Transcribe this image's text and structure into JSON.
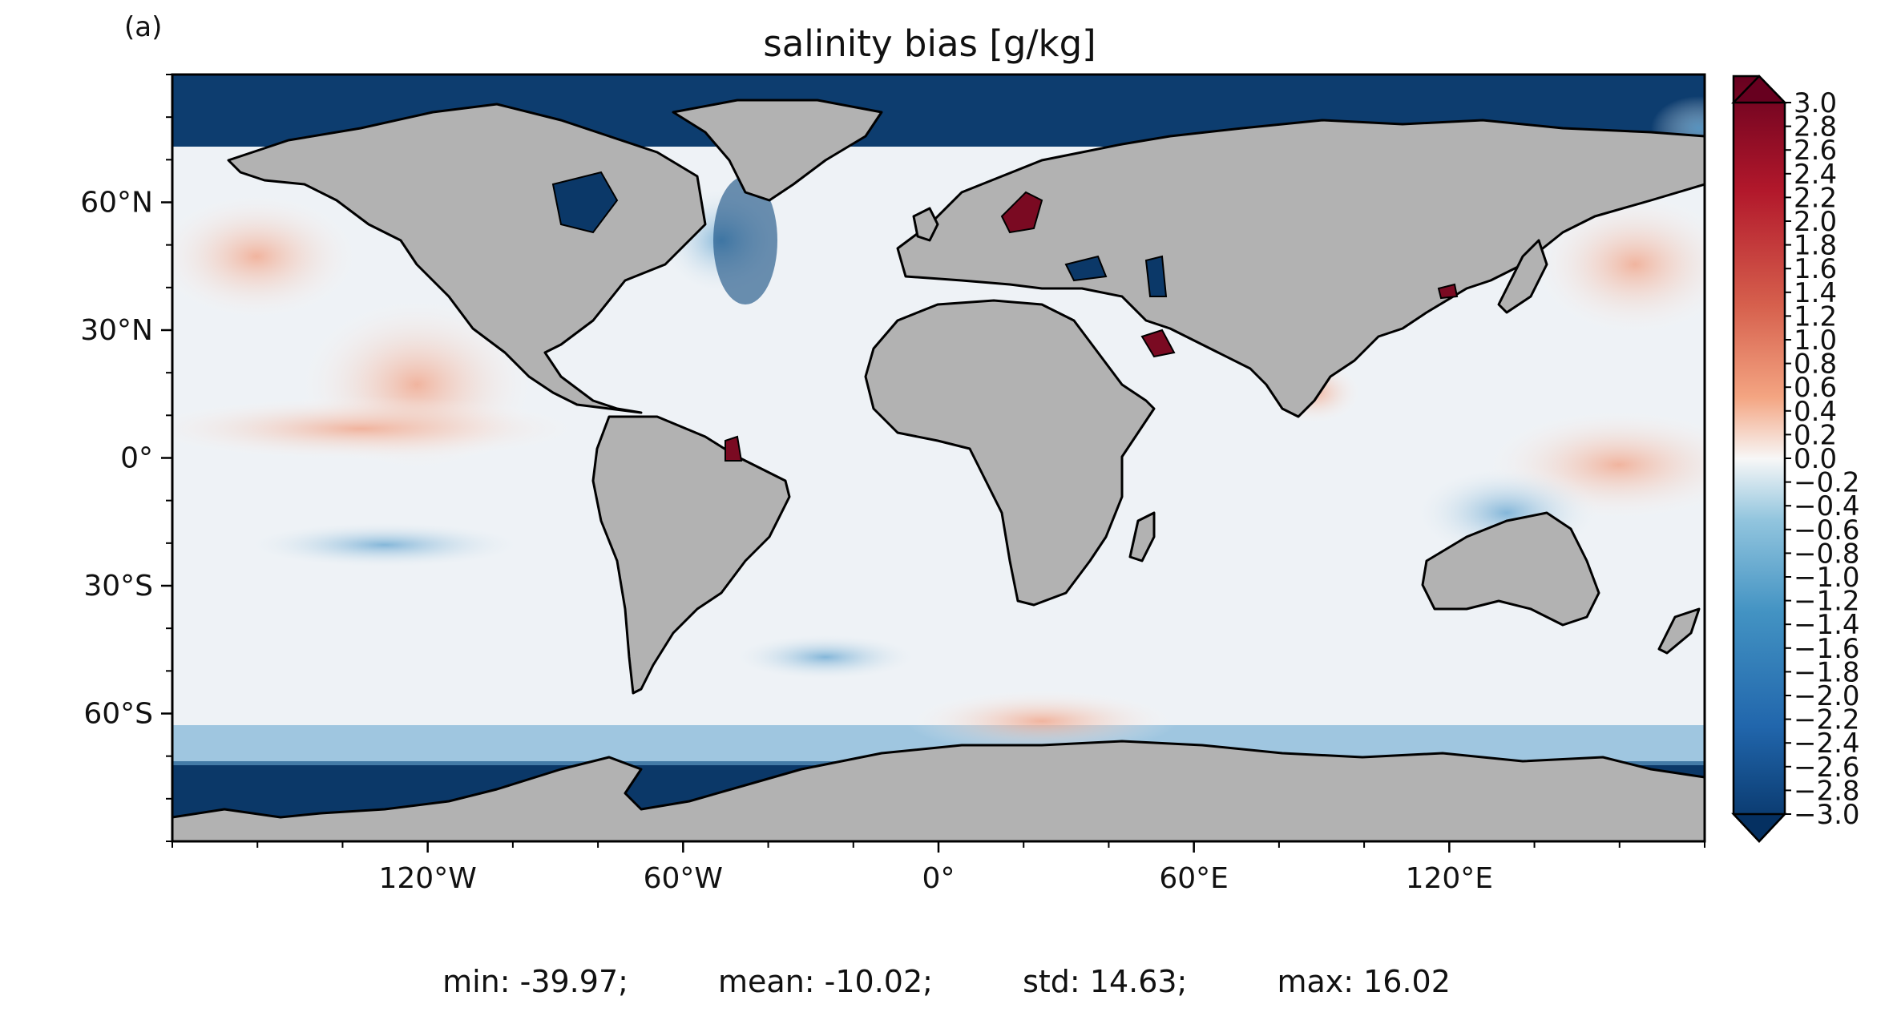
{
  "panel_label": "(a)",
  "title": "salinity bias [g/kg]",
  "map": {
    "projection": "PlateCarree",
    "lon_ticks": [
      {
        "lon": -120,
        "label": "120°W"
      },
      {
        "lon": -60,
        "label": "60°W"
      },
      {
        "lon": 0,
        "label": "0°"
      },
      {
        "lon": 60,
        "label": "60°E"
      },
      {
        "lon": 120,
        "label": "120°E"
      }
    ],
    "lat_ticks": [
      {
        "lat": 60,
        "label": "60°N"
      },
      {
        "lat": 30,
        "label": "30°N"
      },
      {
        "lat": 0,
        "label": "0°"
      },
      {
        "lat": -30,
        "label": "30°S"
      },
      {
        "lat": -60,
        "label": "60°S"
      }
    ],
    "land_color": "#b2b2b2",
    "coast_color": "#000000"
  },
  "colorbar": {
    "cmap": "RdBu_r",
    "vmin": -3.0,
    "vmax": 3.0,
    "extend": "both",
    "step": 0.2,
    "tick_labels": [
      "3.0",
      "2.8",
      "2.6",
      "2.4",
      "2.2",
      "2.0",
      "1.8",
      "1.6",
      "1.4",
      "1.2",
      "1.0",
      "0.8",
      "0.6",
      "0.4",
      "0.2",
      "0.0",
      "−0.2",
      "−0.4",
      "−0.6",
      "−0.8",
      "−1.0",
      "−1.2",
      "−1.4",
      "−1.6",
      "−1.8",
      "−2.0",
      "−2.2",
      "−2.4",
      "−2.6",
      "−2.8",
      "−3.0"
    ],
    "colors": {
      "high": "#67001f",
      "pos": "#d6604d",
      "neutral": "#f7f7f7",
      "neg": "#4393c3",
      "low": "#053061"
    }
  },
  "stats": {
    "min": "min: -39.97;",
    "mean": "mean: -10.02;",
    "std": "std: 14.63;",
    "max": "max: 16.02"
  }
}
